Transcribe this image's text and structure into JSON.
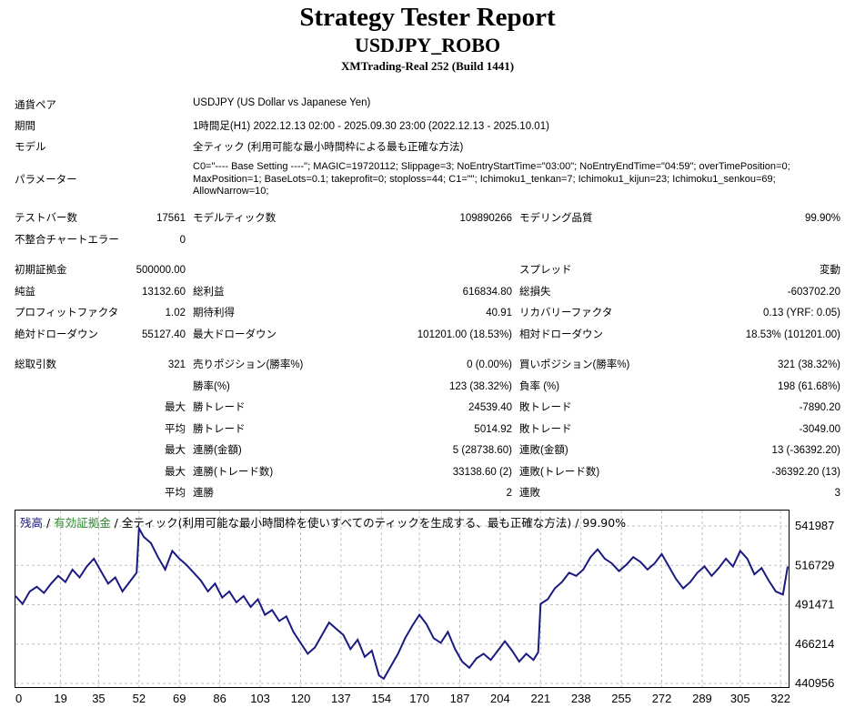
{
  "header": {
    "title": "Strategy Tester Report",
    "symbol": "USDJPY_ROBO",
    "server": "XMTrading-Real 252 (Build 1441)"
  },
  "info": {
    "pair_label": "通貨ペア",
    "pair_value": "USDJPY (US Dollar vs Japanese Yen)",
    "period_label": "期間",
    "period_value": "1時間足(H1) 2022.12.13 02:00 - 2025.09.30 23:00 (2022.12.13 - 2025.10.01)",
    "model_label": "モデル",
    "model_value": "全ティック (利用可能な最小時間枠による最も正確な方法)",
    "params_label": "パラメーター",
    "params_value": "C0=\"---- Base Setting ----\"; MAGIC=19720112; Slippage=3; NoEntryStartTime=\"03:00\"; NoEntryEndTime=\"04:59\"; overTimePosition=0; MaxPosition=1; BaseLots=0.1; takeprofit=0; stoploss=44; C1=\"\"; Ichimoku1_tenkan=7; Ichimoku1_kijun=23; Ichimoku1_senkou=69; AllowNarrow=10;"
  },
  "stats": {
    "bars_label": "テストバー数",
    "bars_value": "17561",
    "ticks_label": "モデルティック数",
    "ticks_value": "109890266",
    "quality_label": "モデリング品質",
    "quality_value": "99.90%",
    "mismatch_label": "不整合チャートエラー",
    "mismatch_value": "0",
    "deposit_label": "初期証拠金",
    "deposit_value": "500000.00",
    "spread_label": "スプレッド",
    "spread_value": "変動",
    "netprofit_label": "純益",
    "netprofit_value": "13132.60",
    "grossprofit_label": "総利益",
    "grossprofit_value": "616834.80",
    "grossloss_label": "総損失",
    "grossloss_value": "-603702.20",
    "pf_label": "プロフィットファクタ",
    "pf_value": "1.02",
    "expected_label": "期待利得",
    "expected_value": "40.91",
    "recovery_label": "リカバリーファクタ",
    "recovery_value": "0.13 (YRF: 0.05)",
    "absdd_label": "絶対ドローダウン",
    "absdd_value": "55127.40",
    "maxdd_label": "最大ドローダウン",
    "maxdd_value": "101201.00 (18.53%)",
    "reldd_label": "相対ドローダウン",
    "reldd_value": "18.53% (101201.00)",
    "trades_label": "総取引数",
    "trades_value": "321",
    "short_label": "売りポジション(勝率%)",
    "short_value": "0 (0.00%)",
    "long_label": "買いポジション(勝率%)",
    "long_value": "321 (38.32%)",
    "winrate_label": "勝率(%)",
    "winrate_value": "123 (38.32%)",
    "lossrate_label": "負率 (%)",
    "lossrate_value": "198 (61.68%)",
    "max_prefix": "最大",
    "avg_prefix": "平均",
    "largest_win_label": "勝トレード",
    "largest_win_value": "24539.40",
    "largest_loss_label": "敗トレード",
    "largest_loss_value": "-7890.20",
    "avg_win_label": "勝トレード",
    "avg_win_value": "5014.92",
    "avg_loss_label": "敗トレード",
    "avg_loss_value": "-3049.00",
    "consec_win_money_label": "連勝(金額)",
    "consec_win_money_value": "5 (28738.60)",
    "consec_loss_money_label": "連敗(金額)",
    "consec_loss_money_value": "13 (-36392.20)",
    "consec_profit_label": "連勝(トレード数)",
    "consec_profit_value": "33138.60 (2)",
    "consec_loss_trades_label": "連敗(トレード数)",
    "consec_loss_trades_value": "-36392.20 (13)",
    "avg_consec_win_label": "連勝",
    "avg_consec_win_value": "2",
    "avg_consec_loss_label": "連敗",
    "avg_consec_loss_value": "3"
  },
  "chart_data": {
    "type": "line",
    "legend": {
      "balance": "残高",
      "sep1": " / ",
      "equity": "有効証拠金",
      "sep2": " / ",
      "desc": "全ティック(利用可能な最小時間枠を使いすべてのティックを生成する、最も正確な方法) / 99.90%"
    },
    "colors": {
      "line": "#1a1a80",
      "balance_text": "#1a1a80",
      "equity_text": "#2e8b2e",
      "grid": "#c0c0c0"
    },
    "ylim": [
      440956,
      541987
    ],
    "y_ticks": [
      "541987",
      "516729",
      "491471",
      "466214",
      "440956"
    ],
    "x_ticks": [
      "0",
      "19",
      "35",
      "52",
      "69",
      "86",
      "103",
      "120",
      "137",
      "154",
      "170",
      "187",
      "204",
      "221",
      "238",
      "255",
      "272",
      "289",
      "305",
      "322"
    ],
    "xlim": [
      0,
      325
    ],
    "series": [
      {
        "name": "残高",
        "x": [
          0,
          3,
          6,
          9,
          12,
          15,
          18,
          21,
          24,
          27,
          30,
          33,
          36,
          39,
          42,
          45,
          48,
          51,
          52,
          54,
          57,
          60,
          63,
          66,
          69,
          72,
          75,
          78,
          81,
          84,
          87,
          90,
          93,
          96,
          99,
          102,
          105,
          108,
          111,
          114,
          117,
          120,
          123,
          126,
          129,
          132,
          135,
          138,
          141,
          144,
          147,
          150,
          153,
          155,
          158,
          161,
          164,
          167,
          170,
          173,
          176,
          179,
          182,
          185,
          188,
          191,
          194,
          197,
          200,
          203,
          206,
          209,
          212,
          215,
          218,
          220,
          221,
          224,
          227,
          230,
          233,
          236,
          239,
          242,
          245,
          248,
          251,
          254,
          257,
          260,
          263,
          266,
          269,
          272,
          275,
          278,
          281,
          284,
          287,
          290,
          293,
          296,
          299,
          302,
          305,
          308,
          311,
          314,
          317,
          320,
          323,
          325
        ],
        "y": [
          497000,
          492000,
          500000,
          503000,
          499000,
          505000,
          510000,
          506000,
          514000,
          509000,
          516000,
          521000,
          513000,
          505000,
          509000,
          500000,
          506000,
          512000,
          540500,
          535000,
          531000,
          522000,
          514000,
          526000,
          521000,
          517000,
          512000,
          507000,
          500000,
          505000,
          496000,
          500000,
          493000,
          497000,
          490000,
          495000,
          485000,
          488000,
          481000,
          484000,
          474000,
          467000,
          460000,
          464000,
          472000,
          480000,
          476000,
          472000,
          463000,
          469000,
          458000,
          462000,
          446000,
          444000,
          452000,
          460000,
          470000,
          478000,
          485000,
          479000,
          470000,
          467000,
          474000,
          463000,
          455000,
          451000,
          457000,
          460000,
          456000,
          462000,
          468000,
          462000,
          455000,
          460000,
          456000,
          461000,
          492000,
          495000,
          502000,
          506000,
          512000,
          510000,
          514000,
          522000,
          527000,
          521000,
          518000,
          513000,
          517000,
          522000,
          519000,
          514000,
          518000,
          524000,
          516000,
          508000,
          502000,
          506000,
          512000,
          516000,
          510000,
          515000,
          521000,
          516000,
          526000,
          521000,
          511000,
          515000,
          507000,
          500000,
          498000,
          516000
        ]
      }
    ],
    "xlabel": "",
    "ylabel": "",
    "grid": true
  }
}
